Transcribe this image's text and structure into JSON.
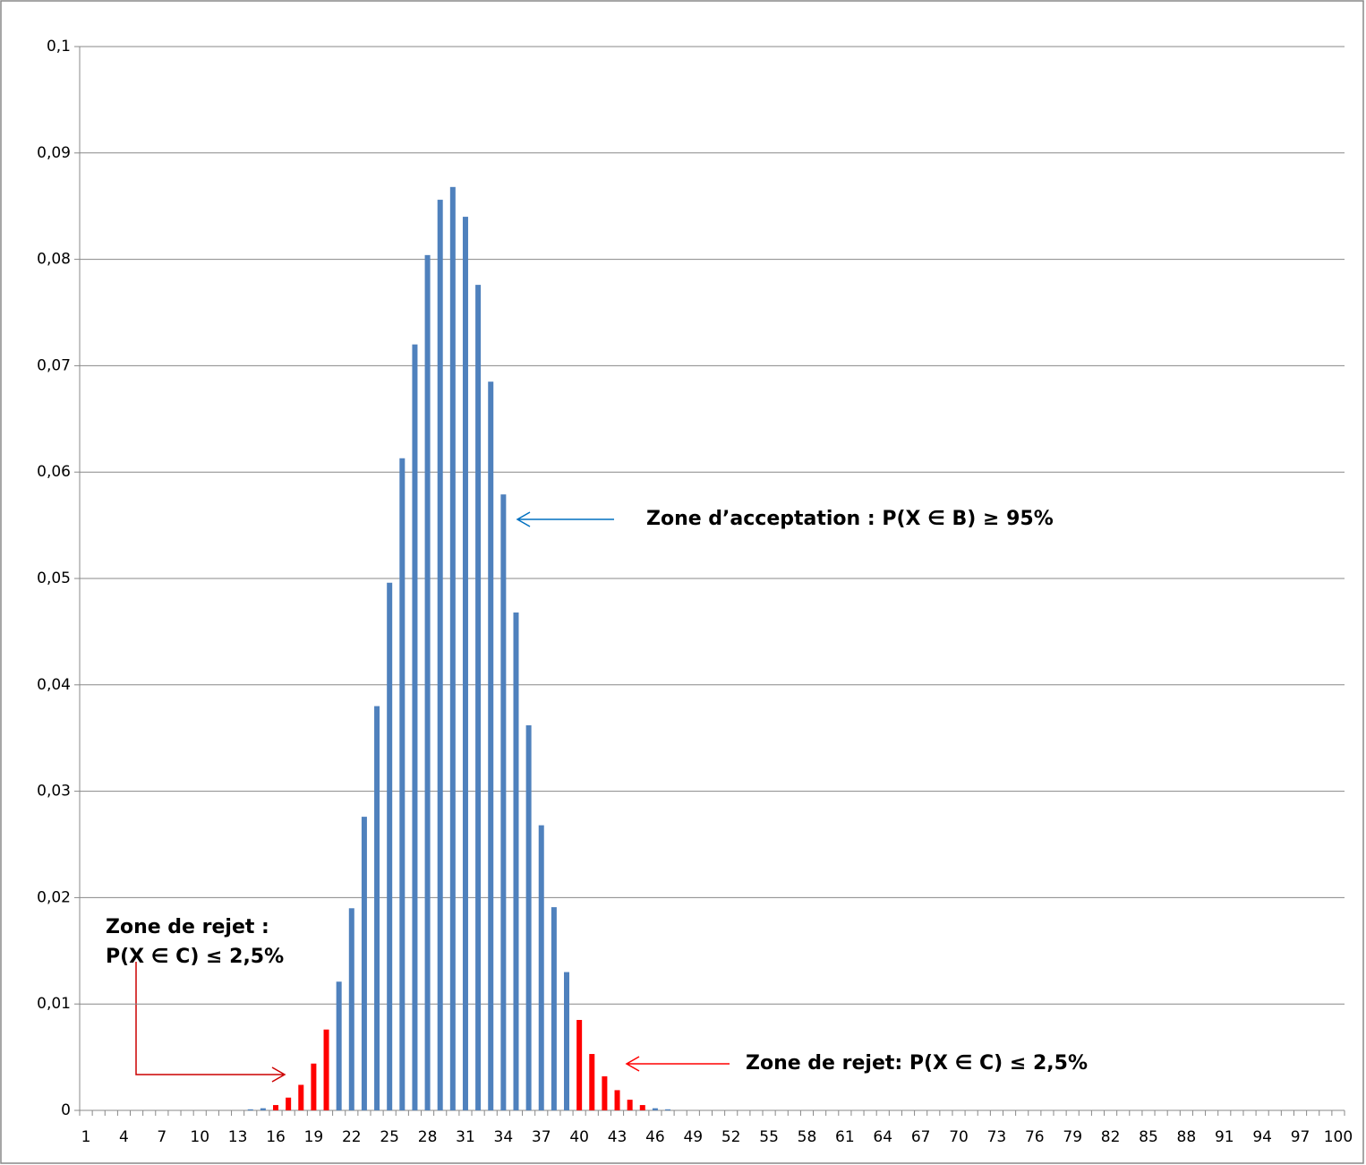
{
  "chart_data": {
    "type": "bar",
    "categories": [
      1,
      null,
      null,
      4,
      null,
      null,
      7,
      null,
      null,
      10,
      null,
      null,
      13,
      null,
      null,
      16,
      null,
      null,
      19,
      null,
      null,
      22,
      null,
      null,
      25,
      null,
      null,
      28,
      null,
      null,
      31,
      null,
      null,
      34,
      null,
      null,
      37,
      null,
      null,
      40,
      null,
      null,
      43,
      null,
      null,
      46,
      null,
      null,
      49,
      null,
      null,
      52,
      null,
      null,
      55,
      null,
      null,
      58,
      null,
      null,
      61,
      null,
      null,
      64,
      null,
      null,
      67,
      null,
      null,
      70,
      null,
      null,
      73,
      null,
      null,
      76,
      null,
      null,
      79,
      null,
      null,
      82,
      null,
      null,
      85,
      null,
      null,
      88,
      null,
      null,
      91,
      null,
      null,
      94,
      null,
      null,
      97,
      null,
      null,
      100
    ],
    "values": [
      0,
      0,
      0,
      0,
      0,
      0,
      0,
      0,
      0,
      0,
      0,
      0,
      0,
      0.0001,
      0.0002,
      0.0005,
      0.0012,
      0.0024,
      0.0044,
      0.0076,
      0.0121,
      0.019,
      0.0276,
      0.038,
      0.0496,
      0.0613,
      0.072,
      0.0804,
      0.0856,
      0.0868,
      0.084,
      0.0776,
      0.0685,
      0.0579,
      0.0468,
      0.0362,
      0.0268,
      0.0191,
      0.013,
      0.0085,
      0.0053,
      0.0032,
      0.0019,
      0.001,
      0.0005,
      0.0002,
      0.0001,
      0,
      0,
      0,
      0,
      0,
      0,
      0,
      0,
      0,
      0,
      0,
      0,
      0,
      0,
      0,
      0,
      0,
      0,
      0,
      0,
      0,
      0,
      0,
      0,
      0,
      0,
      0,
      0,
      0,
      0,
      0,
      0,
      0,
      0,
      0,
      0,
      0,
      0,
      0,
      0,
      0,
      0,
      0,
      0,
      0,
      0,
      0,
      0,
      0,
      0,
      0,
      0,
      0
    ],
    "colors": [
      "#4f81bd",
      "#4f81bd",
      "#4f81bd",
      "#4f81bd",
      "#4f81bd",
      "#4f81bd",
      "#4f81bd",
      "#4f81bd",
      "#4f81bd",
      "#4f81bd",
      "#4f81bd",
      "#4f81bd",
      "#4f81bd",
      "#4f81bd",
      "#4f81bd",
      "#ff0000",
      "#ff0000",
      "#ff0000",
      "#ff0000",
      "#ff0000",
      "#4f81bd",
      "#4f81bd",
      "#4f81bd",
      "#4f81bd",
      "#4f81bd",
      "#4f81bd",
      "#4f81bd",
      "#4f81bd",
      "#4f81bd",
      "#4f81bd",
      "#4f81bd",
      "#4f81bd",
      "#4f81bd",
      "#4f81bd",
      "#4f81bd",
      "#4f81bd",
      "#4f81bd",
      "#4f81bd",
      "#4f81bd",
      "#ff0000",
      "#ff0000",
      "#ff0000",
      "#ff0000",
      "#ff0000",
      "#ff0000",
      "#4f81bd",
      "#4f81bd",
      "#4f81bd",
      "#4f81bd",
      "#4f81bd",
      "#4f81bd",
      "#4f81bd",
      "#4f81bd",
      "#4f81bd",
      "#4f81bd",
      "#4f81bd",
      "#4f81bd",
      "#4f81bd",
      "#4f81bd",
      "#4f81bd",
      "#4f81bd",
      "#4f81bd",
      "#4f81bd",
      "#4f81bd",
      "#4f81bd",
      "#4f81bd",
      "#4f81bd",
      "#4f81bd",
      "#4f81bd",
      "#4f81bd",
      "#4f81bd",
      "#4f81bd",
      "#4f81bd",
      "#4f81bd",
      "#4f81bd",
      "#4f81bd",
      "#4f81bd",
      "#4f81bd",
      "#4f81bd",
      "#4f81bd",
      "#4f81bd",
      "#4f81bd",
      "#4f81bd",
      "#4f81bd",
      "#4f81bd",
      "#4f81bd",
      "#4f81bd",
      "#4f81bd",
      "#4f81bd",
      "#4f81bd",
      "#4f81bd",
      "#4f81bd",
      "#4f81bd",
      "#4f81bd",
      "#4f81bd",
      "#4f81bd",
      "#4f81bd",
      "#4f81bd",
      "#4f81bd",
      "#4f81bd"
    ],
    "ylim": [
      0,
      0.1
    ],
    "yticks": [
      0,
      {
        "value": 0.01,
        "label": "0,01"
      },
      {
        "value": 0.02,
        "label": "0,02"
      },
      {
        "value": 0.03,
        "label": "0,03"
      },
      {
        "value": 0.04,
        "label": "0,04"
      },
      {
        "value": 0.05,
        "label": "0,05"
      },
      {
        "value": 0.06,
        "label": "0,06"
      },
      {
        "value": 0.07,
        "label": "0,07"
      },
      {
        "value": 0.08,
        "label": "0,08"
      },
      {
        "value": 0.09,
        "label": "0,09"
      },
      {
        "value": 0.1,
        "label": "0,1"
      }
    ],
    "grid": true,
    "annotations": [
      {
        "text": "Zone d’acceptation : P(X ∈ B) ≥ 95%",
        "color": "#0070c0"
      },
      {
        "text": "Zone de rejet :",
        "color": "#ff0000"
      },
      {
        "text": "P(X ∈ C) ≤ 2,5%",
        "color": "#ff0000"
      },
      {
        "text": "Zone de rejet: P(X ∈ C) ≤ 2,5%",
        "color": "#ff0000"
      }
    ]
  }
}
